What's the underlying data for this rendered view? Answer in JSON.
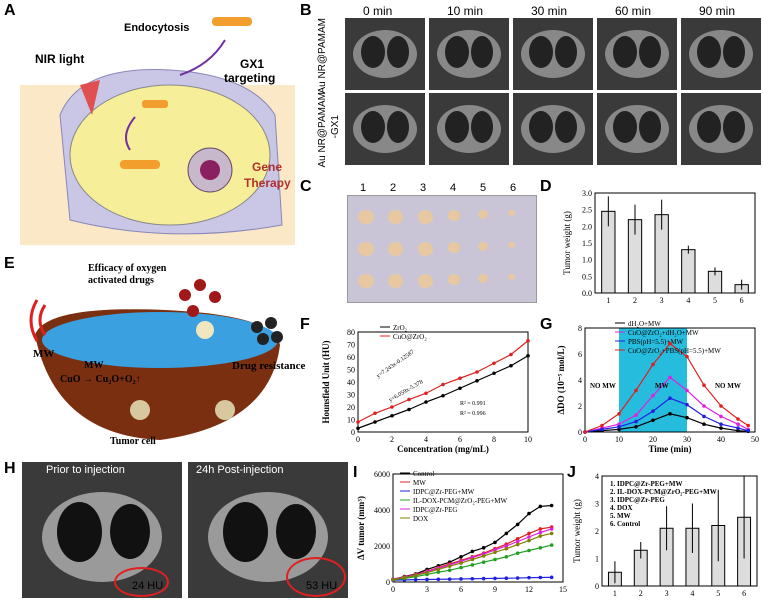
{
  "panels": {
    "a": "A",
    "b": "B",
    "c": "C",
    "d": "D",
    "e": "E",
    "f": "F",
    "g": "G",
    "h": "H",
    "i": "I",
    "j": "J"
  },
  "panel_a": {
    "endocytosis": "Endocytosis",
    "nir": "NIR light",
    "gx1": "GX1",
    "targeting": "targeting",
    "gene": "Gene",
    "therapy": "Therapy"
  },
  "panel_b": {
    "times": [
      "0 min",
      "10 min",
      "30 min",
      "60 min",
      "90 min"
    ],
    "row1": "Au NR@PAMAM",
    "row2a": "Au NR@PAMAM",
    "row2b": "-GX1"
  },
  "panel_c": {
    "numbers": [
      "1",
      "2",
      "3",
      "4",
      "5",
      "6"
    ]
  },
  "panel_e": {
    "efficacy1": "Efficacy of oxygen",
    "efficacy2": "activated drugs",
    "mw": "MW",
    "mw2": "MW",
    "reaction": "CuO → Cu₂O+O₂↑",
    "drug": "Drug resistance",
    "tumor": "Tumor cell"
  },
  "panel_h": {
    "left": "Prior to injection",
    "right": "24h Post-injection",
    "hu1": "24 HU",
    "hu2": "53 HU"
  },
  "colors": {
    "accent": "#00b0d8",
    "red": "#d81818"
  },
  "chart_data": [
    {
      "id": "D",
      "type": "bar",
      "categories": [
        "1",
        "2",
        "3",
        "4",
        "5",
        "6"
      ],
      "values": [
        2.45,
        2.2,
        2.35,
        1.3,
        0.65,
        0.25
      ],
      "errors": [
        0.45,
        0.45,
        0.45,
        0.12,
        0.12,
        0.15
      ],
      "ylabel": "Tumor weight (g)",
      "ylim": [
        0,
        3.0
      ],
      "yticks": [
        "0.0",
        "0.5",
        "1.0",
        "1.5",
        "2.0",
        "2.5",
        "3.0"
      ]
    },
    {
      "id": "F",
      "type": "scatter",
      "xlabel": "Concentration (mg/mL)",
      "ylabel": "Hounsfield Unit (HU)",
      "xlim": [
        0,
        10
      ],
      "ylim": [
        0,
        80
      ],
      "xticks": [
        "0",
        "2",
        "4",
        "6",
        "8",
        "10"
      ],
      "yticks": [
        "0",
        "10",
        "20",
        "30",
        "40",
        "50",
        "60",
        "70",
        "80"
      ],
      "series": [
        {
          "name": "ZrO₂",
          "x": [
            0,
            1,
            2,
            3,
            4,
            5,
            6,
            7,
            8,
            9,
            10
          ],
          "y": [
            3,
            8,
            13,
            18,
            24,
            29,
            35,
            41,
            47,
            53,
            61
          ]
        },
        {
          "name": "CuO@ZrO₂",
          "x": [
            0,
            1,
            2,
            3,
            4,
            5,
            6,
            7,
            8,
            9,
            10
          ],
          "y": [
            8,
            15,
            20,
            26,
            31,
            38,
            43,
            48,
            55,
            62,
            73
          ]
        }
      ],
      "eq1": "y=7.243x-0.12587",
      "eq2": "y=6.059x-5.378",
      "r1": "R² = 0.991",
      "r2": "R² = 0.996"
    },
    {
      "id": "G",
      "type": "line",
      "xlabel": "Time (min)",
      "ylabel": "ΔDO (10⁻⁵ mol/L)",
      "xlim": [
        0,
        50
      ],
      "ylim": [
        0,
        8
      ],
      "xticks": [
        "0",
        "10",
        "20",
        "30",
        "40",
        "50"
      ],
      "yticks": [
        "0",
        "2",
        "4",
        "6",
        "8"
      ],
      "regions": [
        "NO MW",
        "MW",
        "NO MW"
      ],
      "series": [
        {
          "name": "dH₂O+MW",
          "color": "#000000",
          "x": [
            0,
            5,
            10,
            15,
            20,
            25,
            30,
            35,
            40,
            45,
            48
          ],
          "y": [
            0,
            0.1,
            0.2,
            0.4,
            0.9,
            1.4,
            1.1,
            0.6,
            0.3,
            0.1,
            0.05
          ]
        },
        {
          "name": "CuO@ZrO₂+dH₂O+MW",
          "color": "#e020e0",
          "x": [
            0,
            5,
            10,
            15,
            20,
            25,
            30,
            35,
            40,
            45,
            48
          ],
          "y": [
            0,
            0.3,
            0.6,
            1.3,
            2.8,
            4.2,
            3.2,
            2,
            1.2,
            0.6,
            0.2
          ]
        },
        {
          "name": "PBS(pH=5.5)+MW",
          "color": "#2020e0",
          "x": [
            0,
            5,
            10,
            15,
            20,
            25,
            30,
            35,
            40,
            45,
            48
          ],
          "y": [
            0,
            0.2,
            0.4,
            0.8,
            1.6,
            2.6,
            2.1,
            1.2,
            0.6,
            0.3,
            0.1
          ]
        },
        {
          "name": "CuO@ZrO₂+PBS(pH=5.5)+MW",
          "color": "#e02020",
          "x": [
            0,
            5,
            10,
            15,
            20,
            25,
            30,
            35,
            40,
            45,
            48
          ],
          "y": [
            0,
            0.5,
            1.4,
            3.2,
            5.2,
            6.8,
            5.8,
            3.6,
            2,
            1,
            0.5
          ]
        }
      ]
    },
    {
      "id": "I",
      "type": "line",
      "xlabel": "",
      "ylabel": "ΔV tumor (mm³)",
      "xlim": [
        0,
        15
      ],
      "ylim": [
        0,
        6000
      ],
      "xticks": [
        "0",
        "3",
        "6",
        "9",
        "12",
        "15"
      ],
      "yticks": [
        "0",
        "2000",
        "4000",
        "6000"
      ],
      "series": [
        {
          "name": "Control",
          "color": "#000000",
          "x": [
            0,
            1,
            2,
            3,
            4,
            5,
            6,
            7,
            8,
            9,
            10,
            11,
            12,
            13,
            14
          ],
          "y": [
            150,
            300,
            450,
            700,
            900,
            1100,
            1400,
            1700,
            1900,
            2200,
            2700,
            3200,
            3800,
            4200,
            4250
          ]
        },
        {
          "name": "MW",
          "color": "#e02020",
          "x": [
            0,
            1,
            2,
            3,
            4,
            5,
            6,
            7,
            8,
            9,
            10,
            11,
            12,
            13,
            14
          ],
          "y": [
            150,
            280,
            420,
            600,
            800,
            1000,
            1200,
            1400,
            1600,
            1850,
            2100,
            2400,
            2700,
            2950,
            3050
          ]
        },
        {
          "name": "IDPC@Zr-PEG+MW",
          "color": "#2020e0",
          "x": [
            0,
            1,
            2,
            3,
            4,
            5,
            6,
            7,
            8,
            9,
            10,
            11,
            12,
            13,
            14
          ],
          "y": [
            100,
            120,
            130,
            140,
            150,
            160,
            170,
            180,
            190,
            200,
            210,
            220,
            240,
            250,
            260
          ]
        },
        {
          "name": "IL-DOX-PCM@ZrO₂-PEG+MW",
          "color": "#20a020",
          "x": [
            0,
            1,
            2,
            3,
            4,
            5,
            6,
            7,
            8,
            9,
            10,
            11,
            12,
            13,
            14
          ],
          "y": [
            120,
            200,
            300,
            420,
            550,
            650,
            800,
            950,
            1100,
            1250,
            1400,
            1600,
            1750,
            1900,
            2050
          ]
        },
        {
          "name": "IDPC@Zr-PEG",
          "color": "#e020e0",
          "x": [
            0,
            1,
            2,
            3,
            4,
            5,
            6,
            7,
            8,
            9,
            10,
            11,
            12,
            13,
            14
          ],
          "y": [
            140,
            260,
            400,
            580,
            760,
            950,
            1150,
            1350,
            1550,
            1780,
            2000,
            2250,
            2500,
            2750,
            2950
          ]
        },
        {
          "name": "DOX",
          "color": "#808000",
          "x": [
            0,
            1,
            2,
            3,
            4,
            5,
            6,
            7,
            8,
            9,
            10,
            11,
            12,
            13,
            14
          ],
          "y": [
            130,
            240,
            370,
            520,
            700,
            880,
            1050,
            1250,
            1450,
            1650,
            1850,
            2080,
            2300,
            2550,
            2700
          ]
        }
      ]
    },
    {
      "id": "J",
      "type": "bar",
      "categories": [
        "1",
        "2",
        "3",
        "4",
        "5",
        "6"
      ],
      "values": [
        0.5,
        1.3,
        2.1,
        2.1,
        2.2,
        2.5
      ],
      "errors": [
        0.4,
        0.3,
        0.8,
        0.9,
        1.3,
        1.5
      ],
      "ylabel": "Tumor weight (g)",
      "ylim": [
        0,
        4
      ],
      "yticks": [
        "0",
        "1",
        "2",
        "3",
        "4"
      ],
      "legend": [
        "1. IDPC@Zr-PEG+MW",
        "2. IL-DOX-PCM@ZrO₂-PEG+MW",
        "3. IDPC@Zr-PEG",
        "4. DOX",
        "5. MW",
        "6. Control"
      ]
    }
  ]
}
